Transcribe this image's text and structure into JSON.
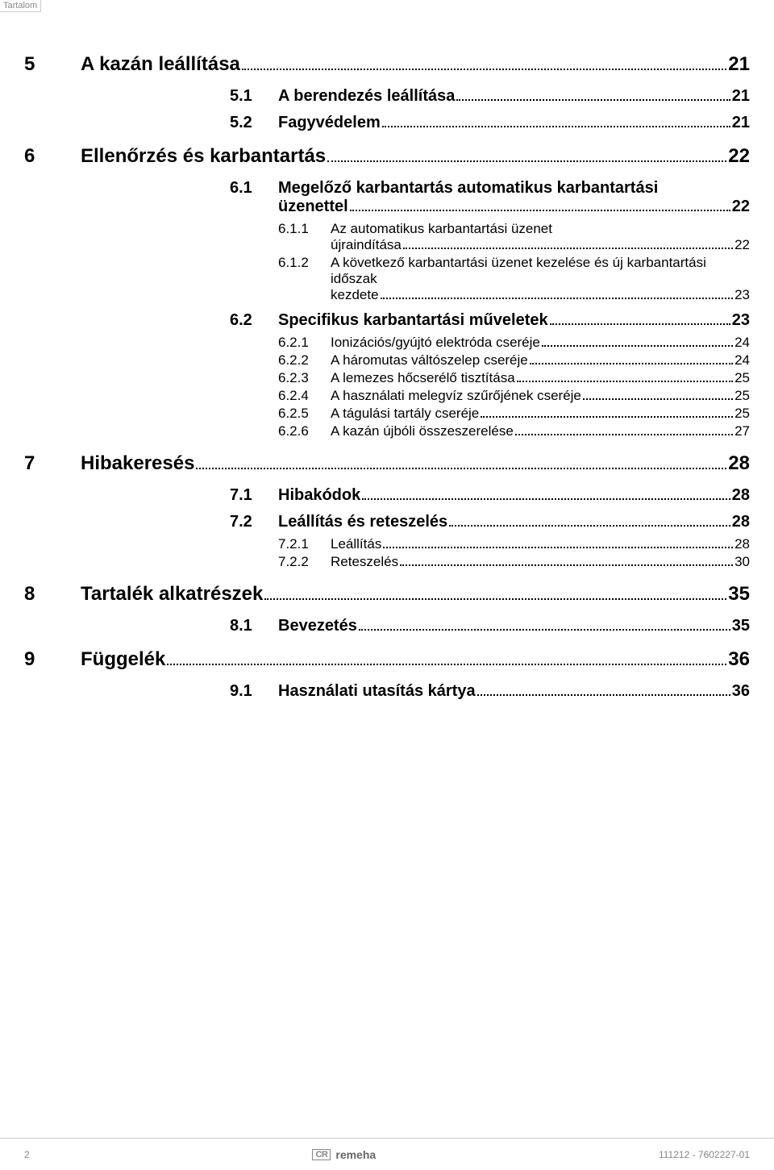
{
  "header_label": "Tartalom",
  "chapters": [
    {
      "num": "5",
      "title": "A kazán leállítása",
      "page": "21",
      "sections": [
        {
          "num": "5.1",
          "title": "A berendezés leállítása",
          "page": "21"
        },
        {
          "num": "5.2",
          "title": "Fagyvédelem",
          "page": "21"
        }
      ]
    },
    {
      "num": "6",
      "title": "Ellenőrzés és karbantartás",
      "page": "22",
      "sections": [
        {
          "num": "6.1",
          "title": "Megelőző karbantartás automatikus karbantartási üzenettel",
          "page": "22",
          "wrap": true,
          "subs": [
            {
              "num": "6.1.1",
              "title": "Az automatikus karbantartási üzenet újraindítása",
              "page": "22",
              "wrap": true
            },
            {
              "num": "6.1.2",
              "title": "A következő karbantartási üzenet kezelése és új karbantartási időszak kezdete",
              "page": "23",
              "wrap": true
            }
          ]
        },
        {
          "num": "6.2",
          "title": "Specifikus karbantartási műveletek",
          "page": "23",
          "subs": [
            {
              "num": "6.2.1",
              "title": "Ionizációs/gyújtó elektróda cseréje",
              "page": "24"
            },
            {
              "num": "6.2.2",
              "title": "A háromutas váltószelep cseréje",
              "page": "24"
            },
            {
              "num": "6.2.3",
              "title": "A lemezes hőcserélő tisztítása",
              "page": "25"
            },
            {
              "num": "6.2.4",
              "title": "A használati melegvíz szűrőjének cseréje",
              "page": "25"
            },
            {
              "num": "6.2.5",
              "title": "A tágulási tartály cseréje",
              "page": "25"
            },
            {
              "num": "6.2.6",
              "title": "A kazán újbóli összeszerelése",
              "page": "27"
            }
          ]
        }
      ]
    },
    {
      "num": "7",
      "title": "Hibakeresés",
      "page": "28",
      "sections": [
        {
          "num": "7.1",
          "title": "Hibakódok",
          "page": "28"
        },
        {
          "num": "7.2",
          "title": "Leállítás és reteszelés",
          "page": "28",
          "subs": [
            {
              "num": "7.2.1",
              "title": "Leállítás",
              "page": "28"
            },
            {
              "num": "7.2.2",
              "title": "Reteszelés",
              "page": "30"
            }
          ]
        }
      ]
    },
    {
      "num": "8",
      "title": "Tartalék alkatrészek",
      "page": "35",
      "sections": [
        {
          "num": "8.1",
          "title": "Bevezetés",
          "page": "35"
        }
      ]
    },
    {
      "num": "9",
      "title": "Függelék",
      "page": "36",
      "sections": [
        {
          "num": "9.1",
          "title": "Használati utasítás kártya",
          "page": "36"
        }
      ]
    }
  ],
  "footer": {
    "page_number": "2",
    "logo_text": "CR",
    "brand_name": "remeha",
    "doc_ref": "111212 - 7602227-01"
  }
}
